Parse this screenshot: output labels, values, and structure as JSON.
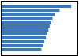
{
  "chart_data": {
    "type": "bar",
    "orientation": "horizontal",
    "categories": [
      null,
      null,
      null,
      null,
      null,
      null,
      null,
      null,
      null,
      null,
      null,
      null
    ],
    "values": [
      17.0,
      14.2,
      13.0,
      12.5,
      12.2,
      11.8,
      11.5,
      11.2,
      10.9,
      10.5,
      10.2,
      9.8
    ],
    "color": "#3579c8",
    "xlim": [
      0,
      18.5
    ],
    "tick_labels": false,
    "grid": false
  }
}
